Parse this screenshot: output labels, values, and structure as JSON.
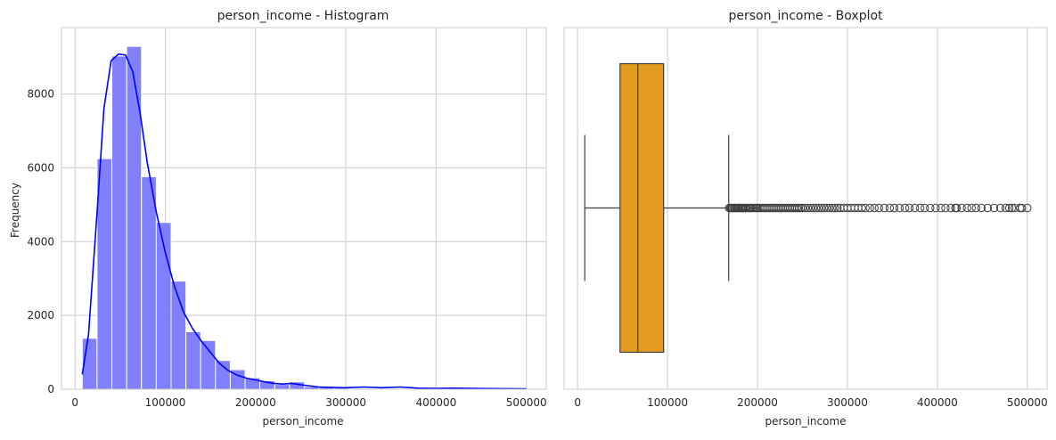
{
  "colors": {
    "hist_bar": "#8080ff",
    "hist_bar_edge": "#ffffff",
    "kde_line": "#0000ff",
    "box_fill": "#e39b1f",
    "box_edge": "#3d3d3d",
    "grid": "#cccccc",
    "spine": "#cccccc"
  },
  "chart_data": [
    {
      "type": "bar",
      "subtype": "histogram_with_kde",
      "title": "person_income - Histogram",
      "xlabel": "person_income",
      "ylabel": "Frequency",
      "xlim": [
        -15000,
        522000
      ],
      "ylim": [
        0,
        9800
      ],
      "xticks": [
        0,
        100000,
        200000,
        300000,
        400000,
        500000
      ],
      "xtick_labels": [
        "0",
        "100000",
        "200000",
        "300000",
        "400000",
        "500000"
      ],
      "yticks": [
        0,
        2000,
        4000,
        6000,
        8000
      ],
      "ytick_labels": [
        "0",
        "2000",
        "4000",
        "6000",
        "8000"
      ],
      "grid": true,
      "bin_edges": [
        8000,
        24400,
        40800,
        57200,
        73600,
        90000,
        106400,
        122800,
        139200,
        155600,
        172000,
        188400,
        204800,
        221200,
        237600,
        254000,
        270400,
        286800,
        303200,
        319600,
        336000
      ],
      "values": [
        1380,
        6250,
        9030,
        9290,
        5760,
        4520,
        2930,
        1560,
        1320,
        780,
        530,
        310,
        230,
        130,
        200,
        70,
        60,
        35,
        25,
        15
      ],
      "kde": {
        "x": [
          8000,
          15000,
          25000,
          32000,
          40000,
          48000,
          56000,
          64000,
          72000,
          80000,
          90000,
          100000,
          110000,
          120000,
          130000,
          140000,
          150000,
          160000,
          170000,
          180000,
          190000,
          200000,
          210000,
          220000,
          230000,
          240000,
          250000,
          270000,
          300000,
          320000,
          340000,
          360000,
          380000,
          400000,
          420000,
          450000,
          480000,
          500000
        ],
        "y": [
          400,
          1500,
          5000,
          7600,
          8900,
          9080,
          9060,
          8600,
          7500,
          6150,
          4800,
          3700,
          2800,
          2100,
          1650,
          1300,
          1000,
          700,
          500,
          380,
          300,
          250,
          200,
          160,
          140,
          160,
          120,
          60,
          40,
          60,
          40,
          60,
          30,
          25,
          30,
          20,
          15,
          10
        ]
      }
    },
    {
      "type": "boxplot",
      "title": "person_income - Boxplot",
      "xlabel": "person_income",
      "xlim": [
        -15000,
        522000
      ],
      "xticks": [
        0,
        100000,
        200000,
        300000,
        400000,
        500000
      ],
      "xtick_labels": [
        "0",
        "100000",
        "200000",
        "300000",
        "400000",
        "500000"
      ],
      "grid": true,
      "whisker_low": 8000,
      "q1": 47200,
      "median": 67000,
      "q3": 95700,
      "whisker_high": 168000,
      "outliers": [
        168500,
        170000,
        171000,
        172500,
        174000,
        175000,
        176000,
        177500,
        179000,
        180000,
        181500,
        183000,
        184000,
        185000,
        186500,
        188000,
        190000,
        191500,
        193000,
        195000,
        197000,
        199000,
        200000,
        202000,
        204000,
        206000,
        208000,
        210000,
        212000,
        214000,
        216000,
        218000,
        220000,
        222000,
        224000,
        226000,
        228000,
        230000,
        232000,
        234000,
        236000,
        238000,
        240000,
        242000,
        244000,
        246000,
        248000,
        250000,
        253000,
        256000,
        259000,
        262000,
        265000,
        268000,
        271000,
        274000,
        277000,
        280000,
        283000,
        286000,
        289000,
        292000,
        296000,
        300000,
        304000,
        308000,
        312000,
        316000,
        320000,
        325000,
        330000,
        335000,
        341000,
        347000,
        352000,
        358000,
        364000,
        369000,
        375000,
        381000,
        386000,
        392000,
        398000,
        404000,
        409000,
        415000,
        420000,
        421500,
        427000,
        433000,
        438000,
        443000,
        449000,
        456000,
        463000,
        470000,
        476000,
        480000,
        483000,
        486000,
        492000,
        494000,
        500000
      ]
    }
  ]
}
